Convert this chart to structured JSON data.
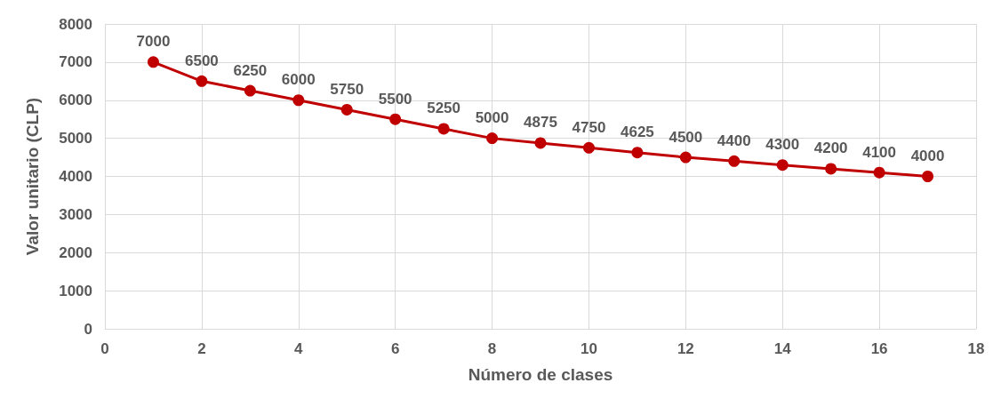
{
  "chart_data": {
    "type": "line",
    "xlabel": "Número de clases",
    "ylabel": "Valor unitario (CLP)",
    "x": [
      1,
      2,
      3,
      4,
      5,
      6,
      7,
      8,
      9,
      10,
      11,
      12,
      13,
      14,
      15,
      16,
      17
    ],
    "series": [
      {
        "color": "#c00000",
        "values": [
          7000,
          6500,
          6250,
          6000,
          5750,
          5500,
          5250,
          5000,
          4875,
          4750,
          4625,
          4500,
          4400,
          4300,
          4200,
          4100,
          4000
        ]
      }
    ],
    "xlim": [
      0,
      18
    ],
    "xticks": [
      0,
      2,
      4,
      6,
      8,
      10,
      12,
      14,
      16,
      18
    ],
    "ylim": [
      0,
      8000
    ],
    "yticks": [
      0,
      1000,
      2000,
      3000,
      4000,
      5000,
      6000,
      7000,
      8000
    ],
    "grid": true,
    "marker": "circle",
    "line_style": "solid",
    "data_labels": true
  }
}
